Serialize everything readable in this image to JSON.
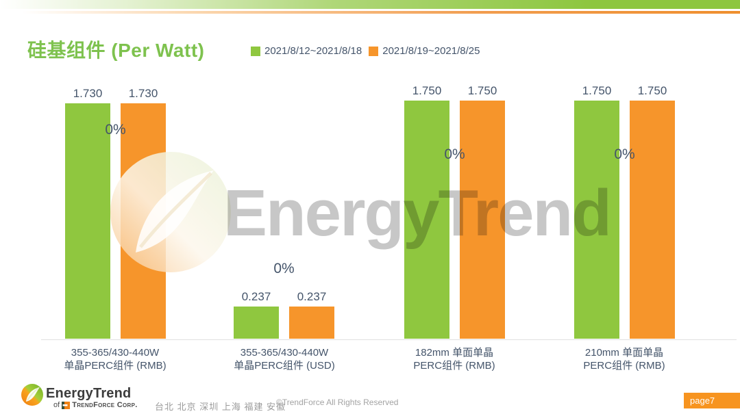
{
  "slide": {
    "title": "硅基组件 (Per Watt)",
    "watermark_text": "EnergyTrend",
    "page_badge": "page7",
    "footer": {
      "brand": "EnergyTrend",
      "sub_prefix": "of",
      "sub_name": "TrendForce Corp.",
      "cities": "台北 北京 深圳 上海 福建 安徽",
      "copyright": "©TrendForce All Rights Reserved"
    }
  },
  "chart_data": {
    "type": "bar",
    "title": "硅基组件 (Per Watt)",
    "legend_position": "top",
    "grid": false,
    "ylim": [
      0,
      1.85
    ],
    "baseline_color": "#e0e0e0",
    "categories": [
      [
        "355-365/430-440W",
        "单晶PERC组件 (RMB)"
      ],
      [
        "355-365/430-440W",
        "单晶PERC组件 (USD)"
      ],
      [
        "182mm 单面单晶",
        "PERC组件 (RMB)"
      ],
      [
        "210mm 单面单晶",
        "PERC组件 (RMB)"
      ]
    ],
    "series": [
      {
        "name": "2021/8/12~2021/8/18",
        "color": "#8fc73f",
        "values": [
          1.73,
          0.237,
          1.75,
          1.75
        ],
        "labels": [
          "1.730",
          "0.237",
          "1.750",
          "1.750"
        ]
      },
      {
        "name": "2021/8/19~2021/8/25",
        "color": "#f6952b",
        "values": [
          1.73,
          0.237,
          1.75,
          1.75
        ],
        "labels": [
          "1.730",
          "0.237",
          "1.750",
          "1.750"
        ]
      }
    ],
    "change_labels": [
      "0%",
      "0%",
      "0%",
      "0%"
    ]
  }
}
